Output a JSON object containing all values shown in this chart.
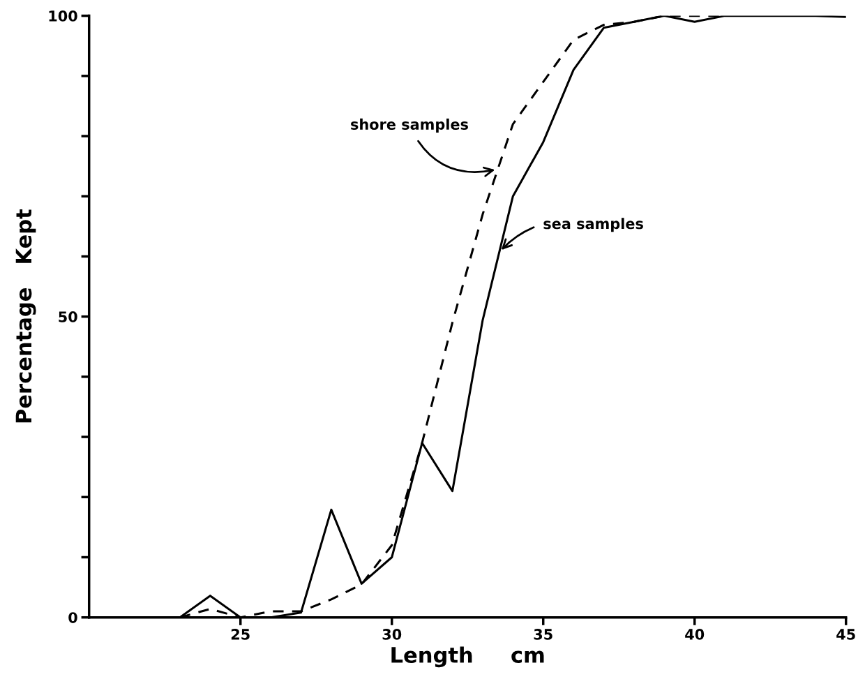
{
  "chart_data": {
    "type": "line",
    "xlabel": "Length     cm",
    "ylabel": "Percentage   Kept",
    "xlim": [
      20,
      45
    ],
    "xticks": [
      25,
      30,
      35,
      40,
      45
    ],
    "ylim": [
      0,
      100
    ],
    "yticks": [
      0,
      {
        "value": 10,
        "label": null
      },
      {
        "value": 20,
        "label": null
      },
      {
        "value": 30,
        "label": null
      },
      {
        "value": 40,
        "label": null
      },
      50,
      {
        "value": 60,
        "label": null
      },
      {
        "value": 70,
        "label": null
      },
      {
        "value": 80,
        "label": null
      },
      {
        "value": 90,
        "label": null
      },
      100
    ],
    "grid": false,
    "legend": false,
    "series": [
      {
        "name": "shore samples",
        "color": "#000000",
        "line_style": "dashed",
        "x": [
          23,
          24,
          25,
          26,
          27,
          28,
          29,
          30,
          31,
          32,
          33,
          34,
          35,
          36,
          37,
          38,
          39,
          40,
          41
        ],
        "values": [
          0,
          1.4,
          0,
          1,
          1,
          3,
          5.5,
          12,
          29,
          49,
          67,
          82,
          89,
          96,
          98.5,
          99,
          100,
          100,
          100
        ]
      },
      {
        "name": "sea samples",
        "color": "#000000",
        "line_style": "solid",
        "x": [
          23,
          24,
          25,
          26,
          27,
          28,
          29,
          30,
          31,
          32,
          33,
          34,
          35,
          36,
          37,
          38,
          39,
          40,
          41,
          42,
          43,
          44,
          45
        ],
        "values": [
          0,
          3.6,
          0,
          0,
          0.8,
          17.9,
          5.6,
          10,
          29,
          21,
          49.4,
          70,
          79,
          91,
          98,
          99,
          100,
          99,
          100,
          100,
          100,
          100,
          99.8
        ]
      }
    ]
  }
}
